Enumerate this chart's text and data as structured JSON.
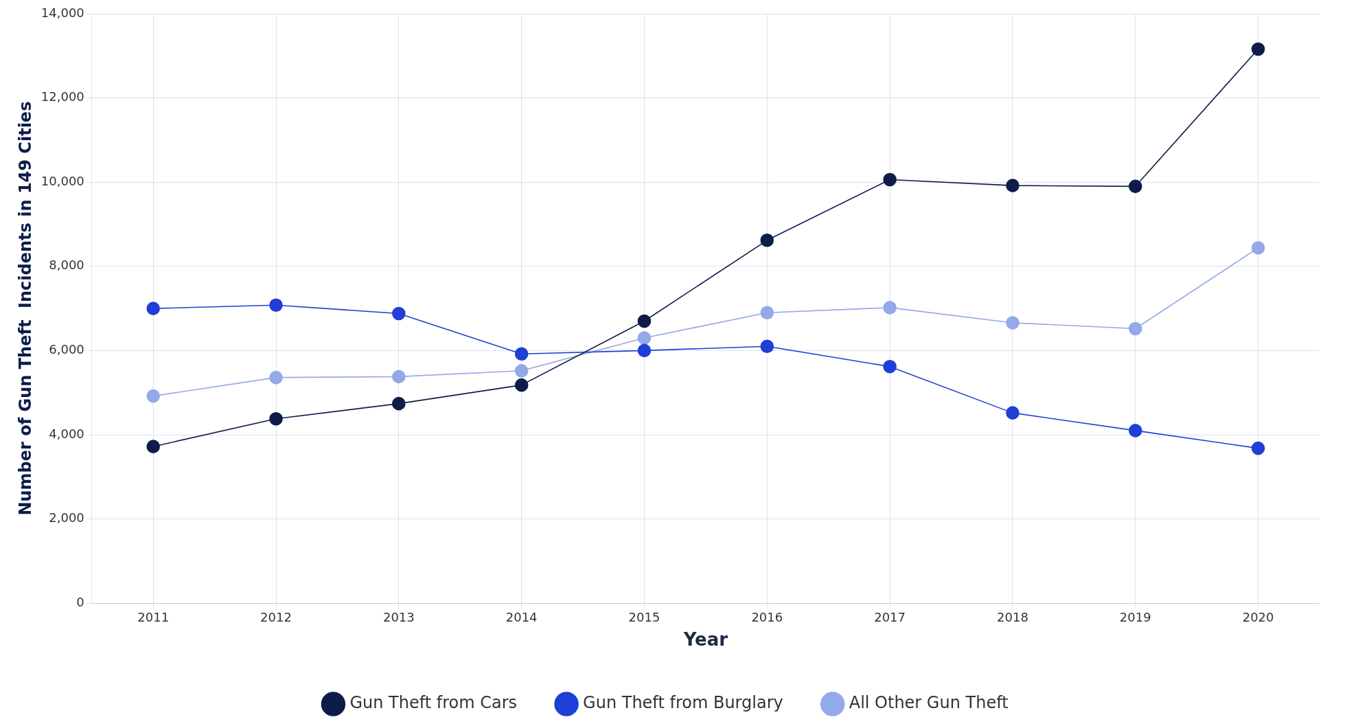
{
  "chart_data": {
    "type": "line",
    "xlabel": "Year",
    "ylabel": "Number of Gun Theft  Incidents in 149 Cities",
    "categories": [
      "2011",
      "2012",
      "2013",
      "2014",
      "2015",
      "2016",
      "2017",
      "2018",
      "2019",
      "2020"
    ],
    "series": [
      {
        "name": "Gun Theft from Cars",
        "color": "#0e1c4a",
        "values": [
          3720,
          4380,
          4740,
          5180,
          6700,
          8620,
          10060,
          9920,
          9900,
          13160
        ]
      },
      {
        "name": "Gun Theft from Burglary",
        "color": "#1f3fd6",
        "values": [
          7000,
          7080,
          6880,
          5920,
          6000,
          6100,
          5620,
          4520,
          4100,
          3680
        ]
      },
      {
        "name": "All Other Gun Theft",
        "color": "#94a8ea",
        "values": [
          4920,
          5360,
          5380,
          5520,
          6300,
          6900,
          7020,
          6660,
          6520,
          8440
        ]
      }
    ],
    "ylim": [
      0,
      14000
    ],
    "yticks": [
      {
        "value": 0,
        "label": "0"
      },
      {
        "value": 2000,
        "label": "2,000"
      },
      {
        "value": 4000,
        "label": "4,000"
      },
      {
        "value": 6000,
        "label": "6,000"
      },
      {
        "value": 8000,
        "label": "8,000"
      },
      {
        "value": 10000,
        "label": "10,000"
      },
      {
        "value": 12000,
        "label": "12,000"
      },
      {
        "value": 14000,
        "label": "14,000"
      }
    ],
    "grid": true,
    "legend": "bottom",
    "marker": "circle",
    "line_style": "solid"
  }
}
